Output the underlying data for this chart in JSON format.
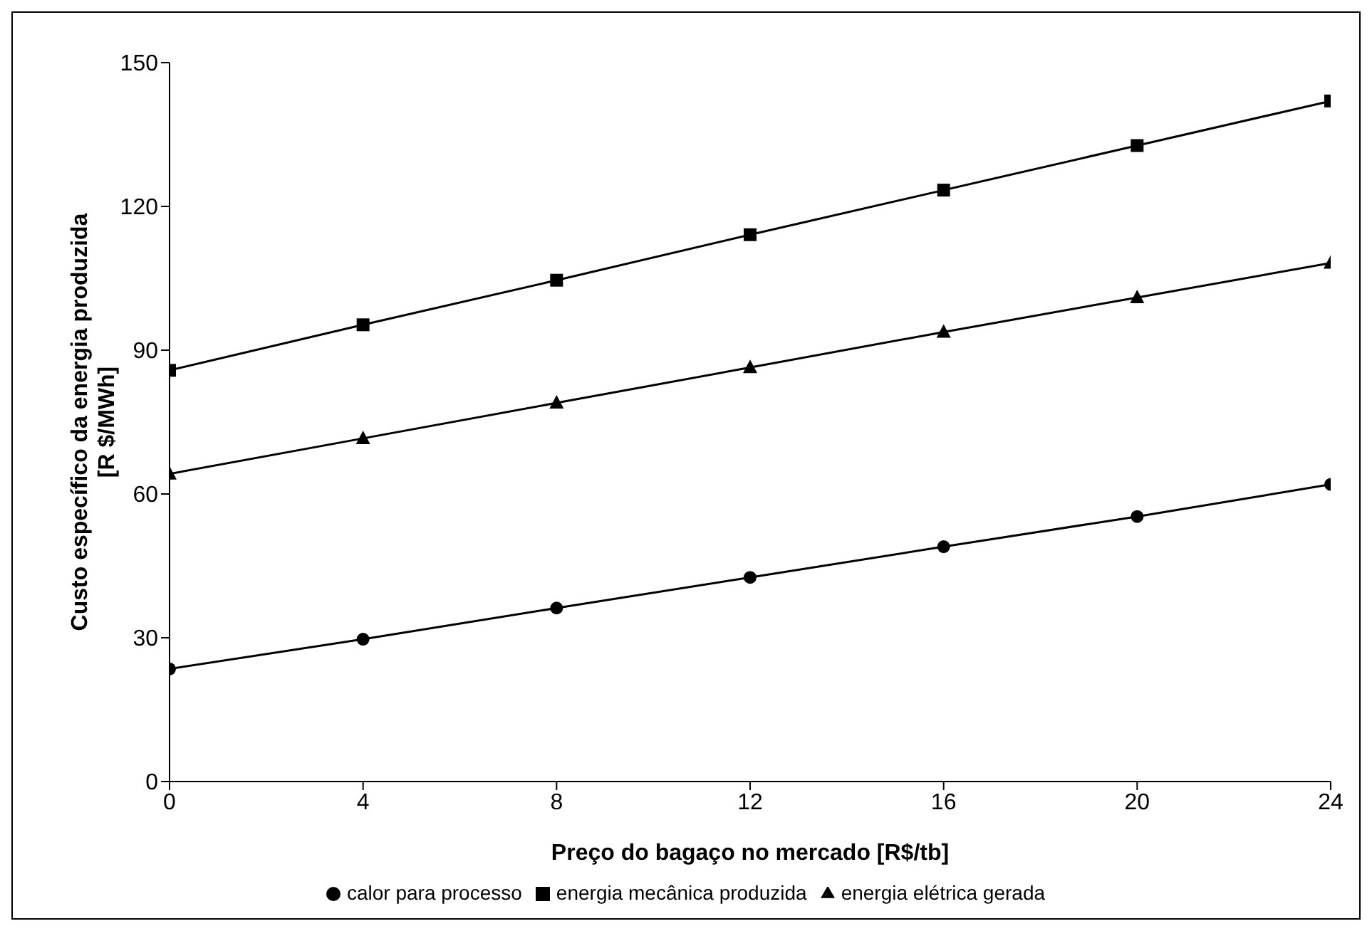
{
  "chart_data": {
    "type": "line",
    "xlabel": "Preço do bagaço no mercado [R$/tb]",
    "ylabel": "Custo específico da energia produzida\n[R $/MWh]",
    "x": [
      0,
      4,
      8,
      12,
      16,
      20,
      24
    ],
    "series": [
      {
        "name": "calor para processo",
        "color": "#000000",
        "marker": "circle",
        "values": [
          23.5,
          29.7,
          36.2,
          42.6,
          49,
          55.3,
          62
        ]
      },
      {
        "name": "energia mecânica produzida",
        "color": "#000000",
        "marker": "square",
        "values": [
          85.8,
          95.3,
          104.6,
          114.1,
          123.4,
          132.7,
          142
        ]
      },
      {
        "name": "energia elétrica gerada",
        "color": "#000000",
        "marker": "triangle",
        "values": [
          64.2,
          71.6,
          79,
          86.4,
          93.8,
          101,
          108.2
        ]
      }
    ],
    "xlim": [
      0,
      24
    ],
    "xticks": [
      0,
      4,
      8,
      12,
      16,
      20,
      24
    ],
    "ylim": [
      0,
      150
    ],
    "yticks": [
      0,
      30,
      60,
      90,
      120,
      150
    ],
    "grid": false,
    "legend": "bottom",
    "line_style": "solid"
  }
}
